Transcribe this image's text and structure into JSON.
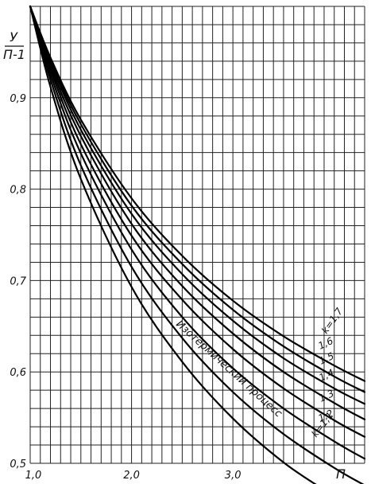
{
  "chart_data": {
    "type": "line",
    "xlabel": "П",
    "ylabel": "У / П-1",
    "xlim": [
      1.0,
      4.3
    ],
    "ylim": [
      0.5,
      1.0
    ],
    "xticks": [
      {
        "value": 1.0,
        "label": "1,0"
      },
      {
        "value": 2.0,
        "label": "2,0"
      },
      {
        "value": 3.0,
        "label": "3,0"
      }
    ],
    "yticks": [
      {
        "value": 0.9,
        "label": "0,9"
      },
      {
        "value": 0.8,
        "label": "0,8"
      },
      {
        "value": 0.7,
        "label": "0,7"
      },
      {
        "value": 0.6,
        "label": "0,6"
      },
      {
        "value": 0.5,
        "label": "0,5"
      }
    ],
    "grid": true,
    "series": [
      {
        "name": "Изотермический процесс",
        "x": [
          1.0,
          1.2,
          1.5,
          2.0,
          2.5,
          3.0,
          3.5,
          3.9
        ],
        "y": [
          1.0,
          0.912,
          0.811,
          0.693,
          0.611,
          0.549,
          0.501,
          0.471
        ]
      },
      {
        "name": "k=1,1",
        "x": [
          1.0,
          1.2,
          1.5,
          2.0,
          2.5,
          3.0,
          3.5,
          4.0,
          4.3
        ],
        "y": [
          1.0,
          0.92,
          0.826,
          0.715,
          0.637,
          0.578,
          0.532,
          0.495,
          0.476
        ]
      },
      {
        "name": "1,2",
        "x": [
          1.0,
          1.2,
          1.5,
          2.0,
          2.5,
          3.0,
          3.5,
          4.0,
          4.3
        ],
        "y": [
          1.0,
          0.926,
          0.839,
          0.734,
          0.66,
          0.604,
          0.56,
          0.524,
          0.505
        ]
      },
      {
        "name": "1,3",
        "x": [
          1.0,
          1.2,
          1.5,
          2.0,
          2.5,
          3.0,
          3.5,
          4.0,
          4.3
        ],
        "y": [
          1.0,
          0.931,
          0.849,
          0.749,
          0.679,
          0.625,
          0.582,
          0.547,
          0.529
        ]
      },
      {
        "name": "1,4",
        "x": [
          1.0,
          1.2,
          1.5,
          2.0,
          2.5,
          3.0,
          3.5,
          4.0,
          4.3
        ],
        "y": [
          1.0,
          0.935,
          0.858,
          0.762,
          0.694,
          0.642,
          0.6,
          0.566,
          0.548
        ]
      },
      {
        "name": "1,5",
        "x": [
          1.0,
          1.2,
          1.5,
          2.0,
          2.5,
          3.0,
          3.5,
          4.0,
          4.3
        ],
        "y": [
          1.0,
          0.939,
          0.865,
          0.773,
          0.707,
          0.656,
          0.615,
          0.582,
          0.565
        ]
      },
      {
        "name": "1,6",
        "x": [
          1.0,
          1.2,
          1.5,
          2.0,
          2.5,
          3.0,
          3.5,
          4.0,
          4.3
        ],
        "y": [
          1.0,
          0.941,
          0.871,
          0.782,
          0.718,
          0.668,
          0.628,
          0.595,
          0.578
        ]
      },
      {
        "name": "k=1,7",
        "x": [
          1.0,
          1.2,
          1.5,
          2.0,
          2.5,
          3.0,
          3.5,
          4.0,
          4.3
        ],
        "y": [
          1.0,
          0.944,
          0.876,
          0.79,
          0.727,
          0.678,
          0.639,
          0.607,
          0.59
        ]
      }
    ]
  }
}
